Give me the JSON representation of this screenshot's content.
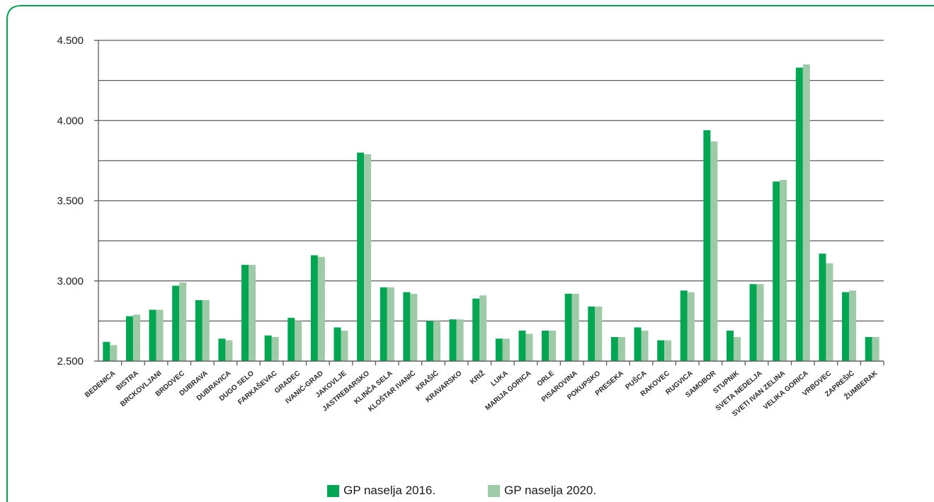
{
  "chart_data": {
    "type": "bar",
    "categories": [
      "BEDENICA",
      "BISTRA",
      "BRCKOVLJANI",
      "BRDOVEC",
      "DUBRAVA",
      "DUBRAVICA",
      "DUGO SELO",
      "FARKAŠEVAC",
      "GRADEC",
      "IVANIĆ-GRAD",
      "JAKOVLJE",
      "JASTREBARSKO",
      "KLINČA SELA",
      "KLOŠTAR IVANIĆ",
      "KRAŠIĆ",
      "KRAVARSKO",
      "KRIŽ",
      "LUKA",
      "MARIJA GORICA",
      "ORLE",
      "PISAROVINA",
      "POKUPSKO",
      "PRESEKA",
      "PUŠCA",
      "RAKOVEC",
      "RUGVICA",
      "SAMOBOR",
      "STUPNIK",
      "SVETA NEDELJA",
      "SVETI IVAN ZELINA",
      "VELIKA GORICA",
      "VRBOVEC",
      "ZAPREŠIĆ",
      "ŽUMBERAK"
    ],
    "series": [
      {
        "name": "GP naselja 2016.",
        "color": "#00a651",
        "values": [
          2620,
          2780,
          2820,
          2970,
          2880,
          2640,
          3100,
          2660,
          2770,
          3160,
          2710,
          3800,
          2960,
          2930,
          2750,
          2760,
          2890,
          2640,
          2690,
          2690,
          2920,
          2840,
          2650,
          2710,
          2630,
          2940,
          3940,
          2690,
          2980,
          3620,
          4330,
          3170,
          2930,
          2650
        ]
      },
      {
        "name": "GP naselja 2020.",
        "color": "#9fcaa8",
        "values": [
          2600,
          2790,
          2820,
          2990,
          2880,
          2630,
          3100,
          2650,
          2750,
          3150,
          2690,
          3790,
          2960,
          2920,
          2750,
          2760,
          2910,
          2640,
          2670,
          2690,
          2920,
          2840,
          2650,
          2690,
          2630,
          2930,
          3870,
          2650,
          2980,
          3630,
          4350,
          3110,
          2940,
          2650
        ]
      }
    ],
    "yticks": [
      "2.500",
      "3.000",
      "3.500",
      "4.000",
      "4.500"
    ],
    "ylim": [
      2500,
      4500
    ],
    "grid": true,
    "legend": "bottom",
    "frame_color": "#00a651"
  }
}
